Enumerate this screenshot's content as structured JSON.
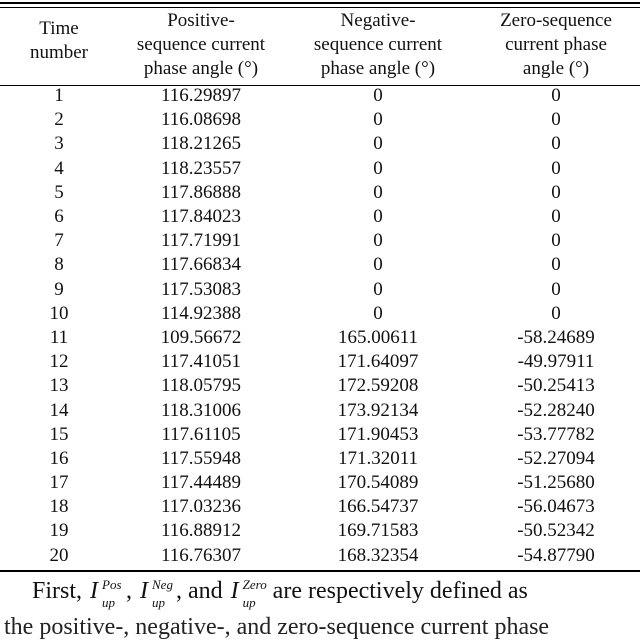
{
  "table": {
    "headers": [
      [
        "Time",
        "number"
      ],
      [
        "Positive-",
        "sequence current",
        "phase angle (°)"
      ],
      [
        "Negative-",
        "sequence current",
        "phase angle (°)"
      ],
      [
        "Zero-sequence",
        "current phase",
        "angle (°)"
      ]
    ],
    "rows": [
      [
        "1",
        "116.29897",
        "0",
        "0"
      ],
      [
        "2",
        "116.08698",
        "0",
        "0"
      ],
      [
        "3",
        "118.21265",
        "0",
        "0"
      ],
      [
        "4",
        "118.23557",
        "0",
        "0"
      ],
      [
        "5",
        "117.86888",
        "0",
        "0"
      ],
      [
        "6",
        "117.84023",
        "0",
        "0"
      ],
      [
        "7",
        "117.71991",
        "0",
        "0"
      ],
      [
        "8",
        "117.66834",
        "0",
        "0"
      ],
      [
        "9",
        "117.53083",
        "0",
        "0"
      ],
      [
        "10",
        "114.92388",
        "0",
        "0"
      ],
      [
        "11",
        "109.56672",
        "165.00611",
        "-58.24689"
      ],
      [
        "12",
        "117.41051",
        "171.64097",
        "-49.97911"
      ],
      [
        "13",
        "118.05795",
        "172.59208",
        "-50.25413"
      ],
      [
        "14",
        "118.31006",
        "173.92134",
        "-52.28240"
      ],
      [
        "15",
        "117.61105",
        "171.90453",
        "-53.77782"
      ],
      [
        "16",
        "117.55948",
        "171.32011",
        "-52.27094"
      ],
      [
        "17",
        "117.44489",
        "170.54089",
        "-51.25680"
      ],
      [
        "18",
        "117.03236",
        "166.54737",
        "-56.04673"
      ],
      [
        "19",
        "116.88912",
        "169.71583",
        "-50.52342"
      ],
      [
        "20",
        "116.76307",
        "168.32354",
        "-54.87790"
      ]
    ]
  },
  "paragraph": {
    "lead": "First,",
    "sym_base": "I",
    "sym_sub": "up",
    "sup_pos": "Pos",
    "sup_neg": "Neg",
    "sup_zero": "Zero",
    "sep1": ",",
    "sep2": ", and",
    "tail": "are respectively defined as",
    "line2": "the positive-, negative-, and zero-sequence current phase"
  }
}
